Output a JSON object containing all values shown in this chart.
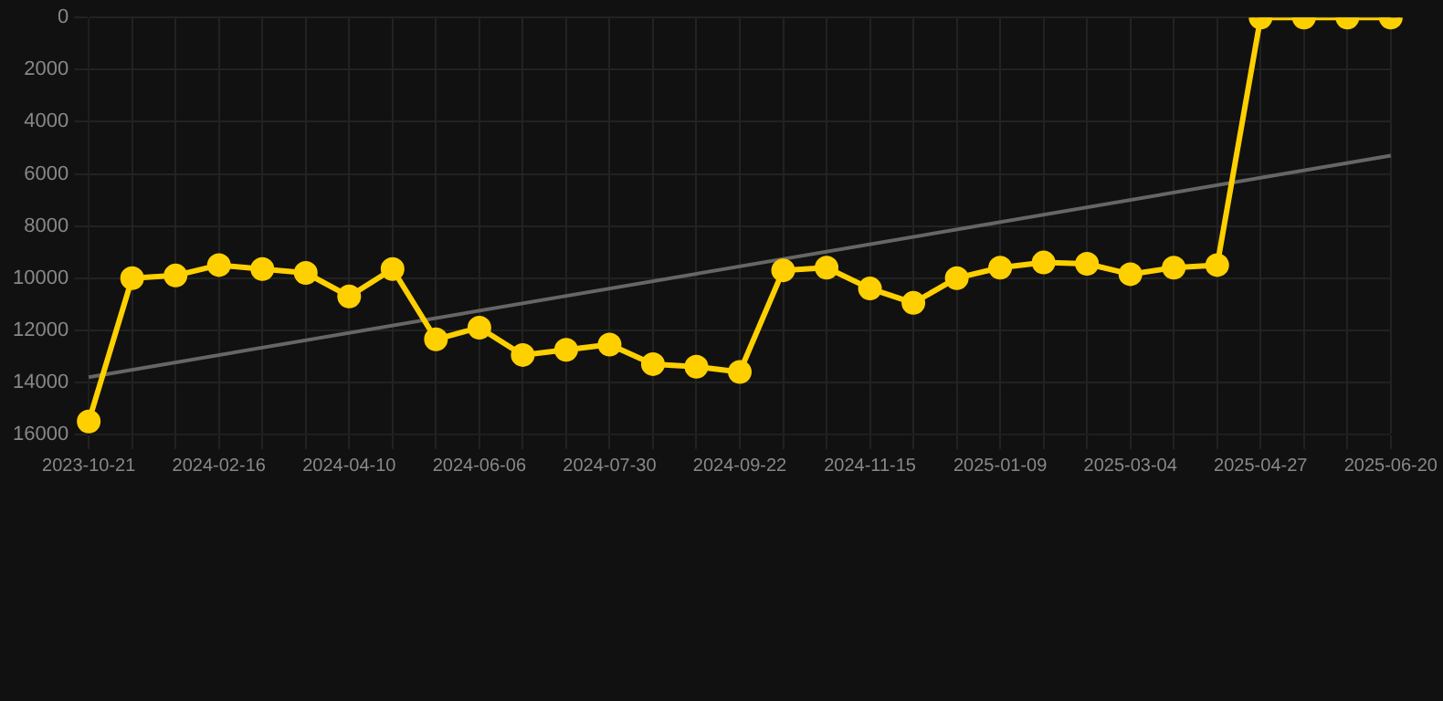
{
  "chart_data": {
    "type": "line",
    "categories": [
      "2023-10-21",
      null,
      null,
      "2024-02-16",
      null,
      null,
      "2024-04-10",
      null,
      null,
      "2024-06-06",
      null,
      null,
      "2024-07-30",
      null,
      null,
      "2024-09-22",
      null,
      null,
      "2024-11-15",
      null,
      null,
      "2025-01-09",
      null,
      null,
      "2025-03-04",
      null,
      null,
      "2025-04-27",
      null,
      null,
      "2025-06-20"
    ],
    "series": [
      {
        "color": "#ffd000",
        "marker": "circle",
        "values": [
          15500,
          10000,
          9900,
          9500,
          9650,
          9800,
          10700,
          9650,
          12350,
          11900,
          12950,
          12750,
          12550,
          13300,
          13400,
          13600,
          9700,
          9600,
          10400,
          10950,
          10000,
          9600,
          9400,
          9450,
          9850,
          9600,
          9500,
          0,
          0,
          0,
          0
        ]
      },
      {
        "color": "#666666",
        "marker": "none",
        "values": [
          13800,
          null,
          null,
          null,
          null,
          null,
          null,
          null,
          null,
          null,
          null,
          null,
          null,
          null,
          null,
          null,
          null,
          null,
          null,
          null,
          null,
          null,
          null,
          null,
          null,
          null,
          null,
          null,
          null,
          null,
          5300
        ]
      }
    ],
    "ylim": [
      16000,
      0
    ],
    "yticks": [
      0,
      2000,
      4000,
      6000,
      8000,
      10000,
      12000,
      14000,
      16000
    ],
    "grid": true,
    "legend": false
  }
}
